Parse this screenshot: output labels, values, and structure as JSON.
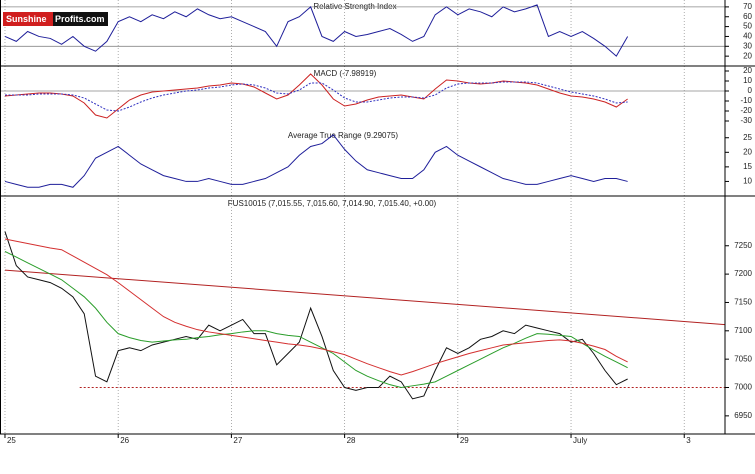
{
  "logo": {
    "primary": "Sunshine",
    "secondary": "Profits.com"
  },
  "chart_data": [
    {
      "type": "line",
      "title": "Relative Strength Index",
      "x": [
        0,
        0.1,
        0.2,
        0.3,
        0.4,
        0.5,
        0.6,
        0.7,
        0.8,
        0.9,
        1,
        1.1,
        1.2,
        1.3,
        1.4,
        1.5,
        1.6,
        1.7,
        1.8,
        1.9,
        2,
        2.1,
        2.2,
        2.3,
        2.4,
        2.5,
        2.6,
        2.7,
        2.8,
        2.9,
        3,
        3.1,
        3.2,
        3.3,
        3.4,
        3.5,
        3.6,
        3.7,
        3.8,
        3.9,
        4,
        4.1,
        4.2,
        4.3,
        4.4,
        4.5,
        4.6,
        4.7,
        4.8,
        4.9,
        5,
        5.1,
        5.2,
        5.3,
        5.4,
        5.5
      ],
      "series": [
        {
          "color": "#1f1f9a",
          "values": [
            40,
            35,
            45,
            40,
            38,
            32,
            40,
            30,
            25,
            35,
            55,
            60,
            55,
            62,
            58,
            65,
            60,
            68,
            62,
            58,
            60,
            55,
            50,
            45,
            30,
            55,
            60,
            70,
            40,
            35,
            45,
            40,
            42,
            45,
            48,
            42,
            35,
            40,
            62,
            70,
            62,
            68,
            65,
            60,
            70,
            65,
            68,
            72,
            40,
            45,
            40,
            45,
            38,
            30,
            20,
            40
          ]
        }
      ],
      "ylim": [
        10,
        77
      ],
      "yticks": [
        70,
        60,
        50,
        40,
        30,
        20
      ],
      "reference_lines": [
        70,
        30
      ]
    },
    {
      "type": "line",
      "title": "MACD (-7.98919)",
      "x": [
        0,
        0.1,
        0.2,
        0.3,
        0.4,
        0.5,
        0.6,
        0.7,
        0.8,
        0.9,
        1,
        1.1,
        1.2,
        1.3,
        1.4,
        1.5,
        1.6,
        1.7,
        1.8,
        1.9,
        2,
        2.1,
        2.2,
        2.3,
        2.4,
        2.5,
        2.6,
        2.7,
        2.8,
        2.9,
        3,
        3.1,
        3.2,
        3.3,
        3.4,
        3.5,
        3.6,
        3.7,
        3.8,
        3.9,
        4,
        4.1,
        4.2,
        4.3,
        4.4,
        4.5,
        4.6,
        4.7,
        4.8,
        4.9,
        5,
        5.1,
        5.2,
        5.3,
        5.4,
        5.5
      ],
      "series": [
        {
          "color": "#cc2222",
          "values": [
            -5,
            -4,
            -3,
            -2,
            -2,
            -3,
            -5,
            -12,
            -24,
            -27,
            -18,
            -9,
            -4,
            -1,
            0,
            1,
            2,
            3,
            5,
            6,
            8,
            7,
            4,
            -2,
            -8,
            -4,
            6,
            17,
            6,
            -8,
            -15,
            -13,
            -9,
            -6,
            -5,
            -4,
            -6,
            -8,
            2,
            11,
            10,
            8,
            7,
            8,
            10,
            9,
            8,
            6,
            2,
            -2,
            -5,
            -6,
            -8,
            -11,
            -16,
            -8
          ]
        },
        {
          "color": "#3030c0",
          "dash": true,
          "values": [
            -4,
            -4,
            -4,
            -3,
            -3,
            -3,
            -4,
            -7,
            -13,
            -19,
            -20,
            -16,
            -11,
            -7,
            -4,
            -2,
            0,
            1,
            3,
            4,
            6,
            7,
            6,
            3,
            -2,
            -3,
            1,
            8,
            8,
            1,
            -7,
            -11,
            -11,
            -9,
            -7,
            -6,
            -6,
            -7,
            -4,
            3,
            7,
            8,
            8,
            8,
            9,
            9,
            9,
            8,
            5,
            2,
            -1,
            -3,
            -5,
            -8,
            -12,
            -11
          ]
        }
      ],
      "ylim": [
        -37,
        24
      ],
      "yticks": [
        20,
        10,
        0,
        -10,
        -20,
        -30
      ],
      "reference_lines": [
        0
      ]
    },
    {
      "type": "line",
      "title": "Average True Range (9.29075)",
      "x": [
        0,
        0.1,
        0.2,
        0.3,
        0.4,
        0.5,
        0.6,
        0.7,
        0.8,
        0.9,
        1,
        1.1,
        1.2,
        1.3,
        1.4,
        1.5,
        1.6,
        1.7,
        1.8,
        1.9,
        2,
        2.1,
        2.2,
        2.3,
        2.4,
        2.5,
        2.6,
        2.7,
        2.8,
        2.9,
        3,
        3.1,
        3.2,
        3.3,
        3.4,
        3.5,
        3.6,
        3.7,
        3.8,
        3.9,
        4,
        4.1,
        4.2,
        4.3,
        4.4,
        4.5,
        4.6,
        4.7,
        4.8,
        4.9,
        5,
        5.1,
        5.2,
        5.3,
        5.4,
        5.5
      ],
      "series": [
        {
          "color": "#1f1f9a",
          "values": [
            10,
            9,
            8,
            8,
            9,
            9,
            8,
            12,
            18,
            20,
            22,
            19,
            16,
            14,
            12,
            11,
            10,
            10,
            11,
            10,
            9,
            9,
            10,
            11,
            13,
            15,
            19,
            22,
            23,
            26,
            21,
            17,
            14,
            13,
            12,
            11,
            11,
            14,
            20,
            22,
            19,
            17,
            15,
            13,
            11,
            10,
            9,
            9,
            10,
            11,
            12,
            11,
            10,
            11,
            11,
            10
          ]
        }
      ],
      "ylim": [
        5,
        28
      ],
      "yticks": [
        25,
        20,
        15,
        10
      ]
    },
    {
      "type": "line",
      "title": "FUS10015 (7,015.55, 7,015.60, 7,014.90, 7,015.40, +0.00)",
      "x": [
        0,
        0.1,
        0.2,
        0.3,
        0.4,
        0.5,
        0.6,
        0.7,
        0.8,
        0.9,
        1,
        1.1,
        1.2,
        1.3,
        1.4,
        1.5,
        1.6,
        1.7,
        1.8,
        1.9,
        2,
        2.1,
        2.2,
        2.3,
        2.4,
        2.5,
        2.6,
        2.7,
        2.8,
        2.9,
        3,
        3.1,
        3.2,
        3.3,
        3.4,
        3.5,
        3.6,
        3.7,
        3.8,
        3.9,
        4,
        4.1,
        4.2,
        4.3,
        4.4,
        4.5,
        4.6,
        4.7,
        4.8,
        4.9,
        5,
        5.1,
        5.2,
        5.3,
        5.4,
        5.5
      ],
      "series": [
        {
          "color": "#111111",
          "values": [
            7275,
            7215,
            7195,
            7190,
            7185,
            7175,
            7160,
            7130,
            7020,
            7010,
            7065,
            7070,
            7065,
            7075,
            7080,
            7085,
            7090,
            7085,
            7110,
            7100,
            7110,
            7120,
            7095,
            7095,
            7040,
            7060,
            7080,
            7140,
            7090,
            7030,
            7000,
            6995,
            7000,
            7000,
            7020,
            7010,
            6980,
            6985,
            7030,
            7070,
            7060,
            7070,
            7085,
            7090,
            7100,
            7095,
            7110,
            7105,
            7100,
            7095,
            7080,
            7085,
            7060,
            7030,
            7005,
            7015
          ]
        },
        {
          "color": "#2a9d2a",
          "values": [
            7240,
            7230,
            7220,
            7210,
            7200,
            7190,
            7175,
            7160,
            7140,
            7115,
            7095,
            7088,
            7083,
            7080,
            7082,
            7084,
            7085,
            7088,
            7090,
            7093,
            7095,
            7098,
            7100,
            7100,
            7095,
            7092,
            7090,
            7080,
            7070,
            7060,
            7045,
            7030,
            7020,
            7012,
            7005,
            7000,
            7003,
            7006,
            7010,
            7020,
            7030,
            7040,
            7050,
            7060,
            7070,
            7078,
            7087,
            7095,
            7094,
            7092,
            7090,
            7078,
            7066,
            7055,
            7045,
            7035
          ]
        },
        {
          "color": "#d43030",
          "values": [
            7262,
            7258,
            7254,
            7250,
            7246,
            7243,
            7232,
            7221,
            7210,
            7199,
            7185,
            7170,
            7155,
            7140,
            7125,
            7115,
            7108,
            7102,
            7098,
            7095,
            7092,
            7089,
            7086,
            7083,
            7080,
            7077,
            7075,
            7072,
            7068,
            7063,
            7058,
            7050,
            7042,
            7035,
            7028,
            7022,
            7028,
            7035,
            7042,
            7048,
            7054,
            7060,
            7065,
            7070,
            7075,
            7077,
            7079,
            7081,
            7083,
            7084,
            7082,
            7078,
            7073,
            7067,
            7055,
            7045
          ]
        }
      ],
      "lines": [
        {
          "color": "#b22222",
          "x": [
            0,
            6.36
          ],
          "values": [
            7207,
            7111
          ]
        },
        {
          "color": "#b22222",
          "dash": true,
          "x": [
            0.66,
            6.36
          ],
          "values": [
            7000,
            7000
          ]
        }
      ],
      "ylim": [
        6918,
        7336
      ],
      "yticks": [
        7250,
        7200,
        7150,
        7100,
        7050,
        7000,
        6950
      ],
      "xlim": [
        -0.044,
        6.36
      ],
      "xticks": [
        {
          "value": 0,
          "label": "25"
        },
        {
          "value": 1,
          "label": "26"
        },
        {
          "value": 2,
          "label": "27"
        },
        {
          "value": 3,
          "label": "28"
        },
        {
          "value": 4,
          "label": "29"
        },
        {
          "value": 5,
          "label": "July"
        },
        {
          "value": 6,
          "label": "3"
        }
      ]
    }
  ]
}
